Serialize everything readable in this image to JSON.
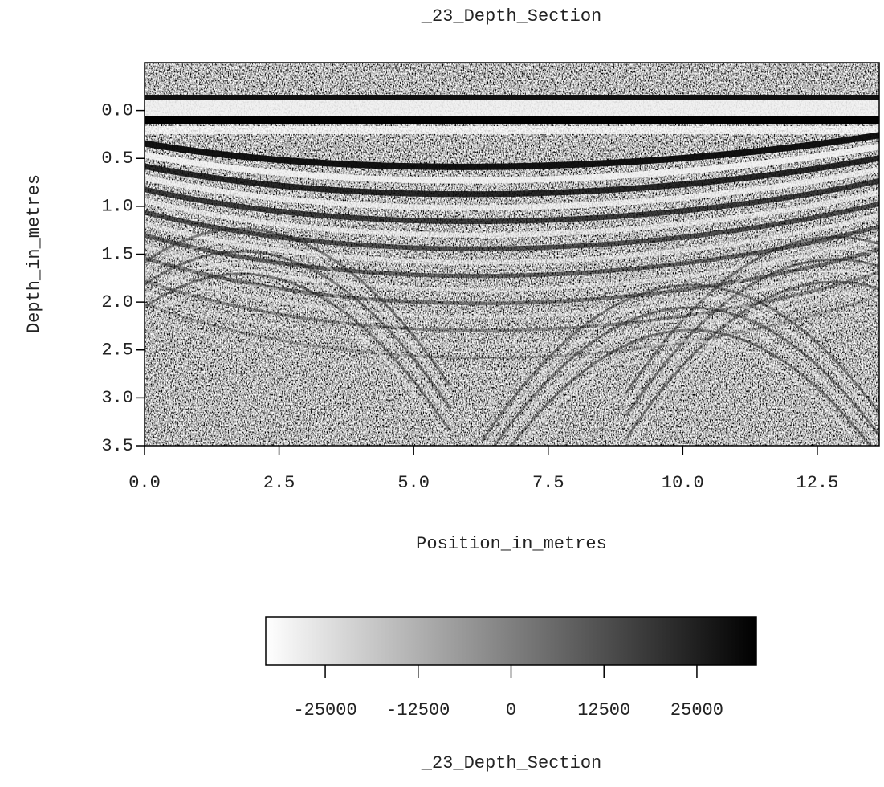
{
  "chart_data": {
    "type": "heatmap",
    "title": "_23_Depth_Section",
    "xlabel": "Position_in_metres",
    "ylabel": "Depth_in_metres",
    "xlim": [
      0,
      13.65
    ],
    "ylim": [
      3.5,
      -0.5
    ],
    "xticks": [
      {
        "value": 0,
        "label": "0.0"
      },
      2.5,
      {
        "value": 5,
        "label": "5.0"
      },
      7.5,
      {
        "value": 10,
        "label": "10.0"
      },
      12.5
    ],
    "yticks": [
      {
        "value": 0,
        "label": "0.0"
      },
      0.5,
      {
        "value": 1,
        "label": "1.0"
      },
      1.5,
      {
        "value": 2,
        "label": "2.0"
      },
      2.5,
      {
        "value": 3,
        "label": "3.0"
      },
      3.5
    ],
    "colorbar": {
      "label": "_23_Depth_Section",
      "lim": [
        -33000,
        33000
      ],
      "ticks": [
        -25000,
        -12500,
        0,
        12500,
        25000
      ],
      "colors": [
        "#ffffff",
        "#000000"
      ]
    }
  }
}
